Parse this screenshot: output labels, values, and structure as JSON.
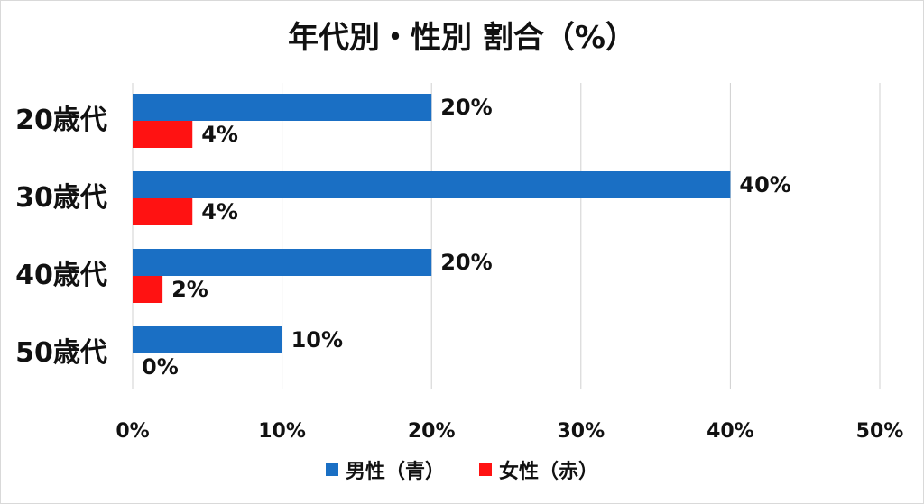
{
  "chart_data": {
    "type": "bar",
    "orientation": "horizontal",
    "title": "年代別・性別 割合（%）",
    "categories": [
      "20歳代",
      "30歳代",
      "40歳代",
      "50歳代"
    ],
    "series": [
      {
        "name": "男性（青）",
        "values": [
          20,
          40,
          20,
          10
        ],
        "color": "#1a6fc4"
      },
      {
        "name": "女性（赤）",
        "values": [
          4,
          4,
          2,
          0
        ],
        "color": "#ff1212"
      }
    ],
    "data_labels": [
      [
        "20%",
        "40%",
        "20%",
        "10%"
      ],
      [
        "4%",
        "4%",
        "2%",
        "0%"
      ]
    ],
    "xlim": [
      0,
      50
    ],
    "xticks": [
      "0%",
      "10%",
      "20%",
      "30%",
      "40%",
      "50%"
    ],
    "grid": true,
    "legend_position": "bottom"
  }
}
